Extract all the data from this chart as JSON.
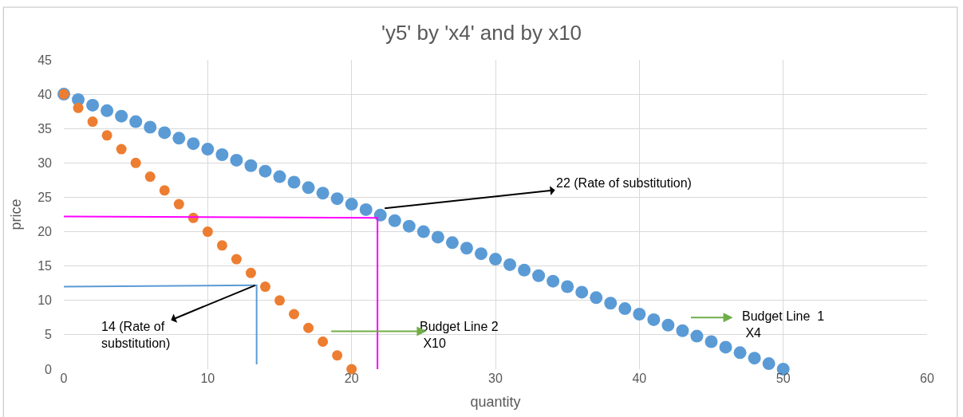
{
  "chart_data": {
    "type": "scatter",
    "title": "'y5' by 'x4' and by x10",
    "xlabel": "quantity",
    "ylabel": "price",
    "xlim": [
      0,
      60
    ],
    "xticks": [
      0,
      10,
      20,
      30,
      40,
      50,
      60
    ],
    "ylim": [
      0,
      45
    ],
    "yticks": [
      0,
      5,
      10,
      15,
      20,
      25,
      30,
      35,
      40,
      45
    ],
    "grid": true,
    "legend": false,
    "series": [
      {
        "color": "#5b9bd5",
        "marker": "circle",
        "x": [
          0,
          1,
          2,
          3,
          4,
          5,
          6,
          7,
          8,
          9,
          10,
          11,
          12,
          13,
          14,
          15,
          16,
          17,
          18,
          19,
          20,
          21,
          22,
          23,
          24,
          25,
          26,
          27,
          28,
          29,
          30,
          31,
          32,
          33,
          34,
          35,
          36,
          37,
          38,
          39,
          40,
          41,
          42,
          43,
          44,
          45,
          46,
          47,
          48,
          49,
          50
        ],
        "values": [
          40,
          39.2,
          38.4,
          37.6,
          36.8,
          36,
          35.2,
          34.4,
          33.6,
          32.8,
          32,
          31.2,
          30.4,
          29.6,
          28.8,
          28,
          27.2,
          26.4,
          25.6,
          24.8,
          24,
          23.2,
          22.4,
          21.6,
          20.8,
          20,
          19.2,
          18.4,
          17.6,
          16.8,
          16,
          15.2,
          14.4,
          13.6,
          12.8,
          12,
          11.2,
          10.4,
          9.6,
          8.8,
          8,
          7.2,
          6.4,
          5.6,
          4.8,
          4,
          3.2,
          2.4,
          1.6,
          0.8,
          0
        ]
      },
      {
        "color": "#ed7d31",
        "marker": "circle",
        "x": [
          0,
          1,
          2,
          3,
          4,
          5,
          6,
          7,
          8,
          9,
          10,
          11,
          12,
          13,
          14,
          15,
          16,
          17,
          18,
          19,
          20
        ],
        "values": [
          40,
          38,
          36,
          34,
          32,
          30,
          28,
          26,
          24,
          22,
          20,
          18,
          16,
          14,
          12,
          10,
          8,
          6,
          4,
          2,
          0
        ]
      },
      {
        "type": "line",
        "color": "#ff00ff",
        "x": [
          0,
          21.8,
          21.8
        ],
        "values": [
          22.2,
          22,
          0
        ]
      },
      {
        "type": "line",
        "color": "#5b9bd5",
        "x": [
          0,
          13.3,
          13.4,
          13.4
        ],
        "values": [
          12,
          12.2,
          12.2,
          0.7
        ]
      }
    ],
    "annotations": [
      {
        "text": "22 (Rate of substitution)",
        "x": 22.3,
        "y": 23.4
      },
      {
        "text": "14 (Rate of\nsubstitution)",
        "x": 13.3,
        "y": 12.2
      },
      "Budget Line 2\n X10",
      "Budget Line  1\n X4"
    ]
  }
}
